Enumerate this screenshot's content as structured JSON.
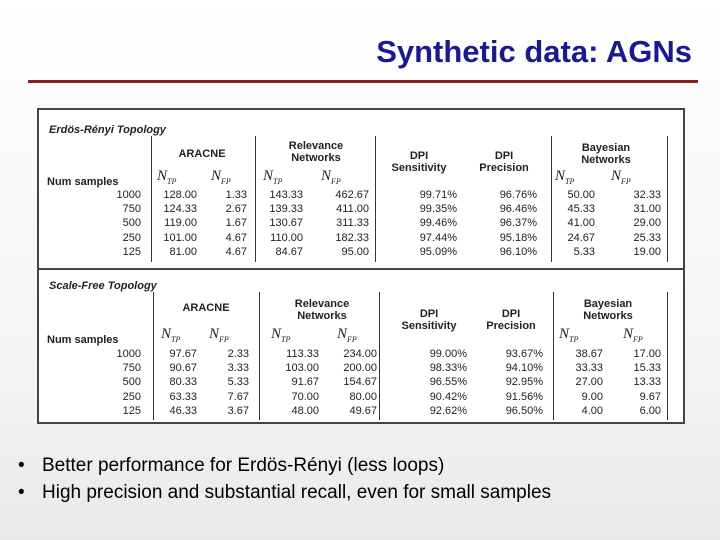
{
  "title": "Synthetic data: AGNs",
  "headers": {
    "aracne": "ARACNE",
    "relevance": "Relevance\nNetworks",
    "dpi_sens": "DPI\nSensitivity",
    "dpi_prec": "DPI\nPrecision",
    "bayesian": "Bayesian\nNetworks",
    "num_samples": "Num samples",
    "ntp": "N",
    "ntp_sub": "TP",
    "nfp": "N",
    "nfp_sub": "FP"
  },
  "tables": [
    {
      "heading": "Erdös-Rényi Topology",
      "samples": [
        "1000",
        "750",
        "500",
        "250",
        "125"
      ],
      "aracne_tp": [
        "128.00",
        "124.33",
        "119.00",
        "101.00",
        "81.00"
      ],
      "aracne_fp": [
        "1.33",
        "2.67",
        "1.67",
        "4.67",
        "4.67"
      ],
      "rel_tp": [
        "143.33",
        "139.33",
        "130.67",
        "110.00",
        "84.67"
      ],
      "rel_fp": [
        "462.67",
        "411.00",
        "311.33",
        "182.33",
        "95.00"
      ],
      "dpi_sens": [
        "99.71%",
        "99.35%",
        "99.46%",
        "97.44%",
        "95.09%"
      ],
      "dpi_prec": [
        "96.76%",
        "96.46%",
        "96.37%",
        "95.18%",
        "96.10%"
      ],
      "bayes_tp": [
        "50.00",
        "45.33",
        "41.00",
        "24.67",
        "5.33"
      ],
      "bayes_fp": [
        "32.33",
        "31.00",
        "29.00",
        "25.33",
        "19.00"
      ]
    },
    {
      "heading": "Scale-Free Topology",
      "samples": [
        "1000",
        "750",
        "500",
        "250",
        "125"
      ],
      "aracne_tp": [
        "97.67",
        "90.67",
        "80.33",
        "63.33",
        "46.33"
      ],
      "aracne_fp": [
        "2.33",
        "3.33",
        "5.33",
        "7.67",
        "3.67"
      ],
      "rel_tp": [
        "113.33",
        "103.00",
        "91.67",
        "70.00",
        "48.00"
      ],
      "rel_fp": [
        "234.00",
        "200.00",
        "154.67",
        "80.00",
        "49.67"
      ],
      "dpi_sens": [
        "99.00%",
        "98.33%",
        "96.55%",
        "90.42%",
        "92.62%"
      ],
      "dpi_prec": [
        "93.67%",
        "94.10%",
        "92.95%",
        "91.56%",
        "96.50%"
      ],
      "bayes_tp": [
        "38.67",
        "33.33",
        "27.00",
        "9.00",
        "4.00"
      ],
      "bayes_fp": [
        "17.00",
        "15.33",
        "13.33",
        "9.67",
        "6.00"
      ]
    }
  ],
  "bullets": [
    "Better performance for Erdös-Rényi (less loops)",
    "High precision and substantial recall, even for small samples"
  ]
}
